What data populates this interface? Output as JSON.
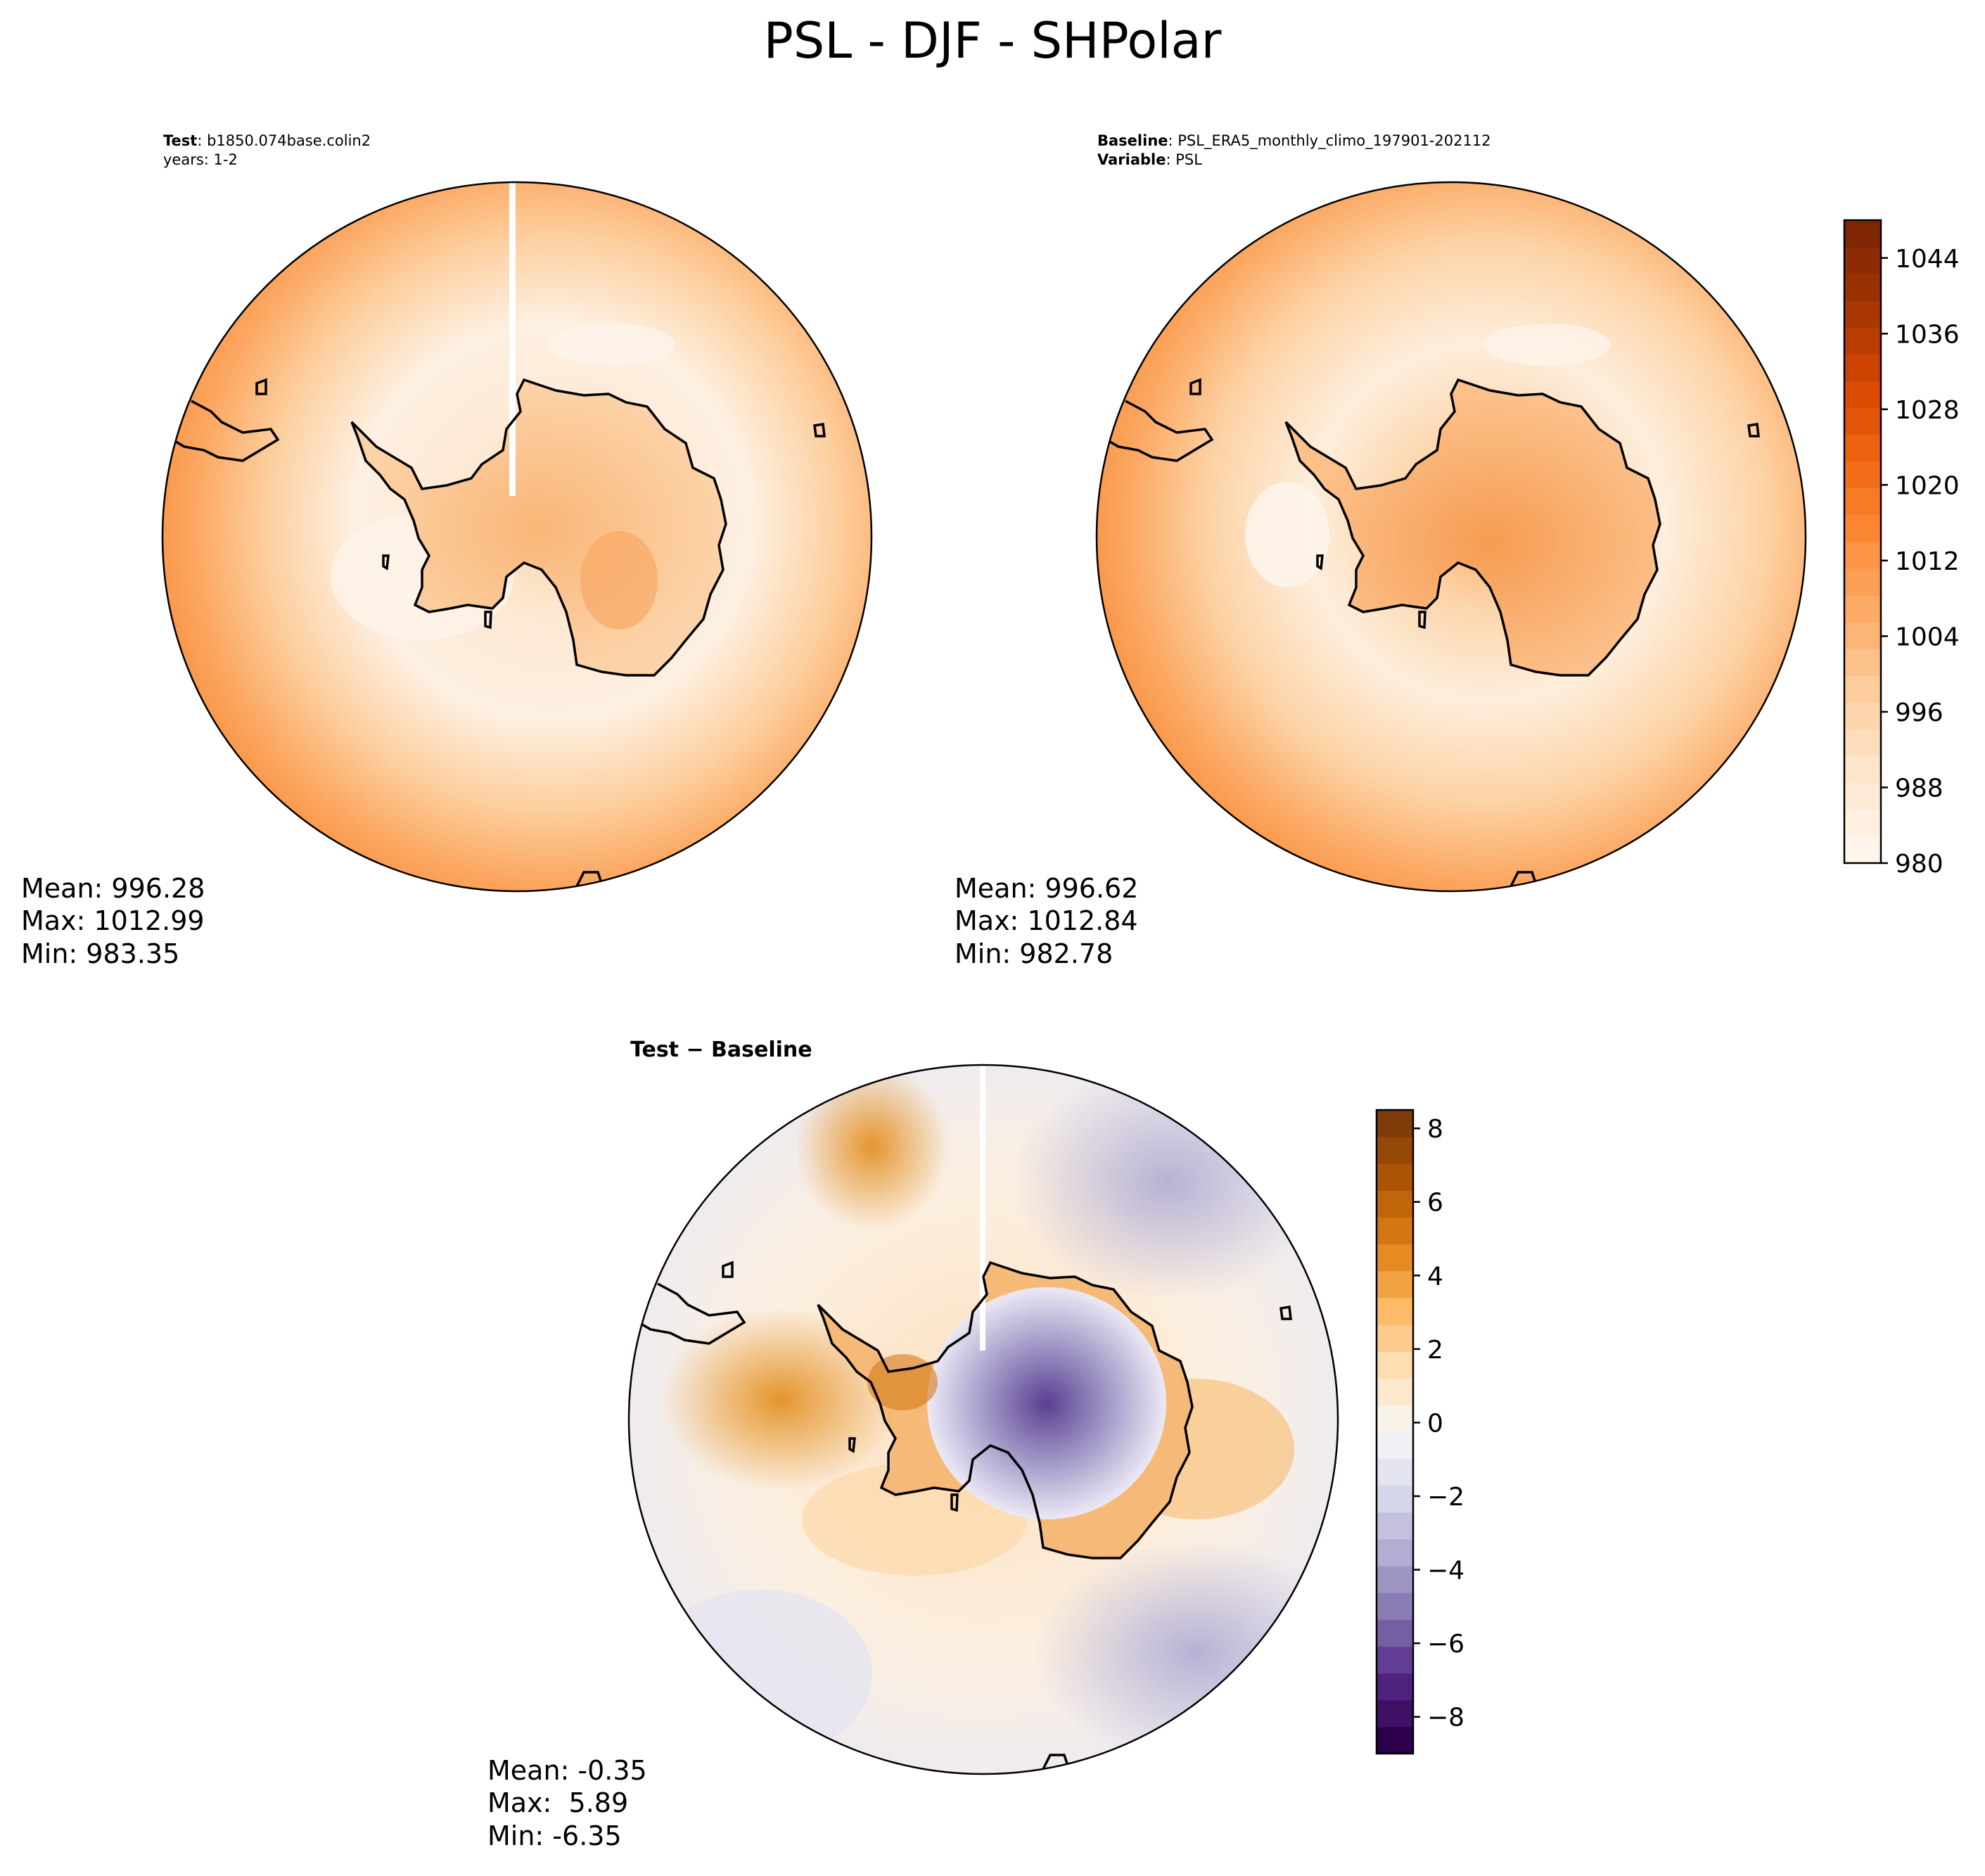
{
  "title": "PSL - DJF - SHPolar",
  "panels": {
    "test": {
      "label_bold": "Test",
      "label_text": ": b1850.074base.colin2",
      "line2": "years: 1-2",
      "stats": {
        "mean": "Mean: 996.28",
        "max": "Max: 1012.99",
        "min": "Min: 983.35"
      }
    },
    "baseline": {
      "label_bold": "Baseline",
      "label_text": ": PSL_ERA5_monthly_climo_197901-202112",
      "line2_bold": "Variable",
      "line2_text": ": PSL",
      "stats": {
        "mean": "Mean: 996.62",
        "max": "Max: 1012.84",
        "min": "Min: 982.78"
      }
    },
    "diff": {
      "label": "Test − Baseline",
      "stats": {
        "mean": "Mean: -0.35",
        "max": "Max:  5.89",
        "min": "Min: -6.35"
      }
    }
  },
  "colorbars": {
    "main": {
      "ticks": [
        "980",
        "988",
        "996",
        "1004",
        "1012",
        "1020",
        "1028",
        "1036",
        "1044"
      ],
      "tick_values": [
        980,
        988,
        996,
        1004,
        1012,
        1020,
        1028,
        1036,
        1044
      ],
      "range": [
        980,
        1048
      ],
      "colors": [
        "#fff5eb",
        "#fee6ce",
        "#fdd0a2",
        "#fdae6b",
        "#fd8d3c",
        "#f16913",
        "#d94801",
        "#a63603",
        "#7f2704"
      ]
    },
    "diff": {
      "ticks": [
        "8",
        "6",
        "4",
        "2",
        "0",
        "−2",
        "−4",
        "−6",
        "−8"
      ],
      "tick_values": [
        8,
        6,
        4,
        2,
        0,
        -2,
        -4,
        -6,
        -8
      ],
      "range": [
        -9,
        8.5
      ],
      "colors": [
        "#2d004b",
        "#542788",
        "#8073ac",
        "#b2abd2",
        "#d8daeb",
        "#f7f7f7",
        "#fee0b6",
        "#fdb863",
        "#e08214",
        "#b35806",
        "#7f3b08"
      ]
    }
  }
}
